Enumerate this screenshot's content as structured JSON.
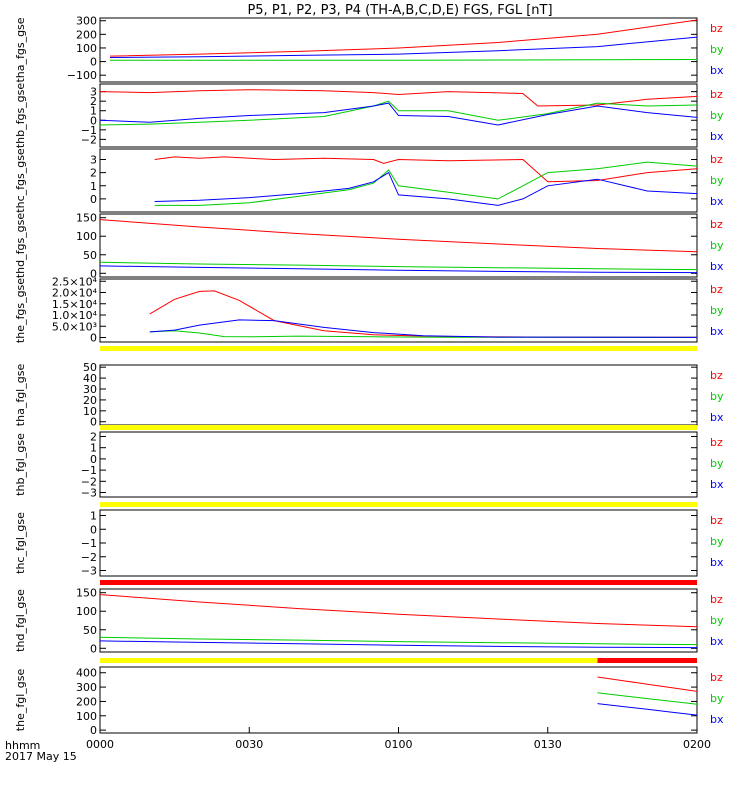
{
  "title": "P5, P1, P2, P3, P4 (TH-A,B,C,D,E) FGS, FGL [nT]",
  "footer": {
    "hhmm": "hhmm",
    "date": "2017 May 15"
  },
  "colors": {
    "bx": "#0000ff",
    "by": "#00cc00",
    "bz": "#ff0000",
    "bar_yellow": "#ffff00",
    "bar_red": "#ff0000"
  },
  "legend_labels": [
    "bz",
    "by",
    "bx"
  ],
  "xaxis": {
    "tick_labels": [
      "0000",
      "0030",
      "0100",
      "0130",
      "0200"
    ],
    "tick_minutes": [
      0,
      30,
      60,
      90,
      120
    ]
  },
  "chart_data": [
    {
      "type": "line",
      "ylabel": "tha_fgs_gse",
      "ylim": [
        -150,
        320
      ],
      "yticks": [
        300,
        200,
        100,
        0,
        -100
      ],
      "ytick_labels": [
        "300",
        "200",
        "100",
        "0",
        "−100"
      ],
      "series": [
        {
          "name": "bz",
          "x": [
            2,
            20,
            40,
            60,
            80,
            100,
            120
          ],
          "values": [
            40,
            55,
            75,
            100,
            140,
            200,
            305
          ]
        },
        {
          "name": "by",
          "x": [
            2,
            60,
            120
          ],
          "values": [
            10,
            10,
            15
          ]
        },
        {
          "name": "bx",
          "x": [
            2,
            20,
            40,
            60,
            80,
            100,
            120
          ],
          "values": [
            30,
            35,
            45,
            55,
            80,
            110,
            180
          ]
        }
      ]
    },
    {
      "type": "line",
      "ylabel": "thb_fgs_gse",
      "ylim": [
        -2.8,
        3.8
      ],
      "yticks": [
        3,
        2,
        1,
        0,
        -1,
        -2
      ],
      "ytick_labels": [
        "3",
        "2",
        "1",
        "0",
        "−1",
        "−2"
      ],
      "series": [
        {
          "name": "bz",
          "x": [
            0,
            10,
            20,
            30,
            45,
            55,
            60,
            70,
            85,
            88,
            100,
            110,
            120
          ],
          "values": [
            3.0,
            2.9,
            3.1,
            3.2,
            3.1,
            2.9,
            2.7,
            3.0,
            2.8,
            1.5,
            1.6,
            2.2,
            2.5
          ]
        },
        {
          "name": "by",
          "x": [
            0,
            10,
            20,
            30,
            45,
            55,
            58,
            60,
            70,
            80,
            90,
            100,
            110,
            120
          ],
          "values": [
            -0.5,
            -0.4,
            -0.2,
            0.0,
            0.4,
            1.5,
            2.0,
            1.0,
            1.0,
            0.0,
            0.7,
            1.8,
            1.5,
            1.6
          ]
        },
        {
          "name": "bx",
          "x": [
            0,
            10,
            20,
            30,
            45,
            55,
            58,
            60,
            70,
            80,
            90,
            100,
            110,
            120
          ],
          "values": [
            0.0,
            -0.2,
            0.2,
            0.5,
            0.8,
            1.5,
            1.8,
            0.5,
            0.4,
            -0.5,
            0.6,
            1.5,
            0.8,
            0.3
          ]
        }
      ]
    },
    {
      "type": "line",
      "ylabel": "thc_fgs_gse",
      "ylim": [
        -1.0,
        3.8
      ],
      "yticks": [
        3,
        2,
        1,
        0
      ],
      "ytick_labels": [
        "3",
        "2",
        "1",
        "0"
      ],
      "series": [
        {
          "name": "bz",
          "x": [
            11,
            15,
            20,
            25,
            35,
            45,
            55,
            57,
            60,
            70,
            85,
            90,
            100,
            110,
            120
          ],
          "values": [
            3.0,
            3.2,
            3.1,
            3.2,
            3.0,
            3.1,
            3.0,
            2.7,
            3.0,
            2.9,
            3.0,
            1.3,
            1.4,
            2.0,
            2.3
          ]
        },
        {
          "name": "by",
          "x": [
            11,
            20,
            30,
            40,
            50,
            55,
            58,
            60,
            70,
            80,
            85,
            90,
            100,
            110,
            120
          ],
          "values": [
            -0.5,
            -0.5,
            -0.3,
            0.2,
            0.7,
            1.2,
            2.2,
            1.0,
            0.5,
            0.0,
            1.0,
            2.0,
            2.3,
            2.8,
            2.5
          ]
        },
        {
          "name": "bx",
          "x": [
            11,
            20,
            30,
            40,
            50,
            55,
            58,
            60,
            70,
            80,
            85,
            90,
            100,
            110,
            120
          ],
          "values": [
            -0.2,
            -0.1,
            0.1,
            0.4,
            0.8,
            1.3,
            2.0,
            0.3,
            0.0,
            -0.5,
            0.0,
            1.0,
            1.5,
            0.6,
            0.4
          ]
        }
      ]
    },
    {
      "type": "line",
      "ylabel": "thd_fgs_gse",
      "ylim": [
        -10,
        160
      ],
      "yticks": [
        150,
        100,
        50,
        0
      ],
      "ytick_labels": [
        "150",
        "100",
        "50",
        "0"
      ],
      "series": [
        {
          "name": "bz",
          "x": [
            0,
            20,
            40,
            60,
            80,
            100,
            120
          ],
          "values": [
            145,
            125,
            107,
            92,
            79,
            67,
            58
          ]
        },
        {
          "name": "by",
          "x": [
            0,
            20,
            40,
            60,
            80,
            100,
            120
          ],
          "values": [
            30,
            25,
            22,
            18,
            15,
            12,
            10
          ]
        },
        {
          "name": "bx",
          "x": [
            0,
            20,
            40,
            60,
            80,
            100,
            120
          ],
          "values": [
            20,
            16,
            12,
            8,
            5,
            3,
            2
          ]
        }
      ]
    },
    {
      "type": "line",
      "ylabel": "the_fgs_gse",
      "ylim": [
        -2000,
        26000
      ],
      "yticks": [
        25000,
        20000,
        15000,
        10000,
        5000,
        0
      ],
      "ytick_labels": [
        "2.5×10⁴",
        "2.0×10⁴",
        "1.5×10⁴",
        "1.0×10⁴",
        "5.0×10³",
        "0"
      ],
      "series": [
        {
          "name": "bz",
          "x": [
            10,
            15,
            20,
            23,
            28,
            35,
            45,
            55,
            70,
            90,
            120
          ],
          "values": [
            10500,
            17000,
            20500,
            20700,
            16500,
            7500,
            3000,
            1200,
            400,
            200,
            100
          ]
        },
        {
          "name": "by",
          "x": [
            10,
            15,
            20,
            25,
            30,
            40,
            55,
            70,
            90,
            120
          ],
          "values": [
            2500,
            3000,
            2000,
            400,
            300,
            600,
            300,
            150,
            100,
            50
          ]
        },
        {
          "name": "bx",
          "x": [
            10,
            15,
            20,
            28,
            35,
            45,
            55,
            65,
            80,
            120
          ],
          "values": [
            2500,
            3300,
            5500,
            7800,
            7500,
            4500,
            2200,
            800,
            200,
            50
          ]
        }
      ]
    },
    {
      "type": "line",
      "ylabel": "tha_fgl_gse",
      "ylim": [
        -3,
        52
      ],
      "yticks": [
        50,
        40,
        30,
        20,
        10,
        0
      ],
      "ytick_labels": [
        "50",
        "40",
        "30",
        "20",
        "10",
        "0"
      ],
      "series": []
    },
    {
      "type": "line",
      "ylabel": "thb_fgl_gse",
      "ylim": [
        -3.4,
        2.4
      ],
      "yticks": [
        2,
        1,
        0,
        -1,
        -2,
        -3
      ],
      "ytick_labels": [
        "2",
        "1",
        "0",
        "−1",
        "−2",
        "−3"
      ],
      "series": []
    },
    {
      "type": "line",
      "ylabel": "thc_fgl_gse",
      "ylim": [
        -3.4,
        1.4
      ],
      "yticks": [
        1,
        0,
        -1,
        -2,
        -3
      ],
      "ytick_labels": [
        "1",
        "0",
        "−1",
        "−2",
        "−3"
      ],
      "series": []
    },
    {
      "type": "line",
      "ylabel": "thd_fgl_gse",
      "ylim": [
        -10,
        160
      ],
      "yticks": [
        150,
        100,
        50,
        0
      ],
      "ytick_labels": [
        "150",
        "100",
        "50",
        "0"
      ],
      "series": [
        {
          "name": "bz",
          "x": [
            0,
            20,
            40,
            60,
            80,
            100,
            120
          ],
          "values": [
            145,
            125,
            107,
            92,
            79,
            67,
            58
          ]
        },
        {
          "name": "by",
          "x": [
            0,
            20,
            40,
            60,
            80,
            100,
            120
          ],
          "values": [
            30,
            25,
            22,
            18,
            15,
            12,
            10
          ]
        },
        {
          "name": "bx",
          "x": [
            0,
            20,
            40,
            60,
            80,
            100,
            120
          ],
          "values": [
            20,
            16,
            12,
            8,
            5,
            3,
            2
          ]
        }
      ]
    },
    {
      "type": "line",
      "ylabel": "the_fgl_gse",
      "ylim": [
        -20,
        440
      ],
      "yticks": [
        400,
        300,
        200,
        100,
        0
      ],
      "ytick_labels": [
        "400",
        "300",
        "200",
        "100",
        "0"
      ],
      "series": [
        {
          "name": "bz",
          "x": [
            100,
            105,
            110,
            115,
            120
          ],
          "values": [
            370,
            345,
            320,
            295,
            270
          ]
        },
        {
          "name": "by",
          "x": [
            100,
            105,
            110,
            115,
            120
          ],
          "values": [
            260,
            240,
            220,
            200,
            180
          ]
        },
        {
          "name": "bx",
          "x": [
            100,
            105,
            110,
            115,
            120
          ],
          "values": [
            185,
            165,
            145,
            125,
            105
          ]
        }
      ]
    }
  ],
  "status_bars": [
    {
      "segments": [
        {
          "from": 0,
          "to": 120,
          "color": "yellow"
        }
      ]
    },
    {
      "segments": [
        {
          "from": 0,
          "to": 120,
          "color": "yellow"
        }
      ]
    },
    {
      "segments": [
        {
          "from": 0,
          "to": 120,
          "color": "yellow"
        }
      ]
    },
    {
      "segments": [
        {
          "from": 0,
          "to": 120,
          "color": "red"
        }
      ]
    },
    {
      "segments": [
        {
          "from": 0,
          "to": 100,
          "color": "yellow"
        },
        {
          "from": 100,
          "to": 120,
          "color": "red"
        }
      ]
    }
  ]
}
